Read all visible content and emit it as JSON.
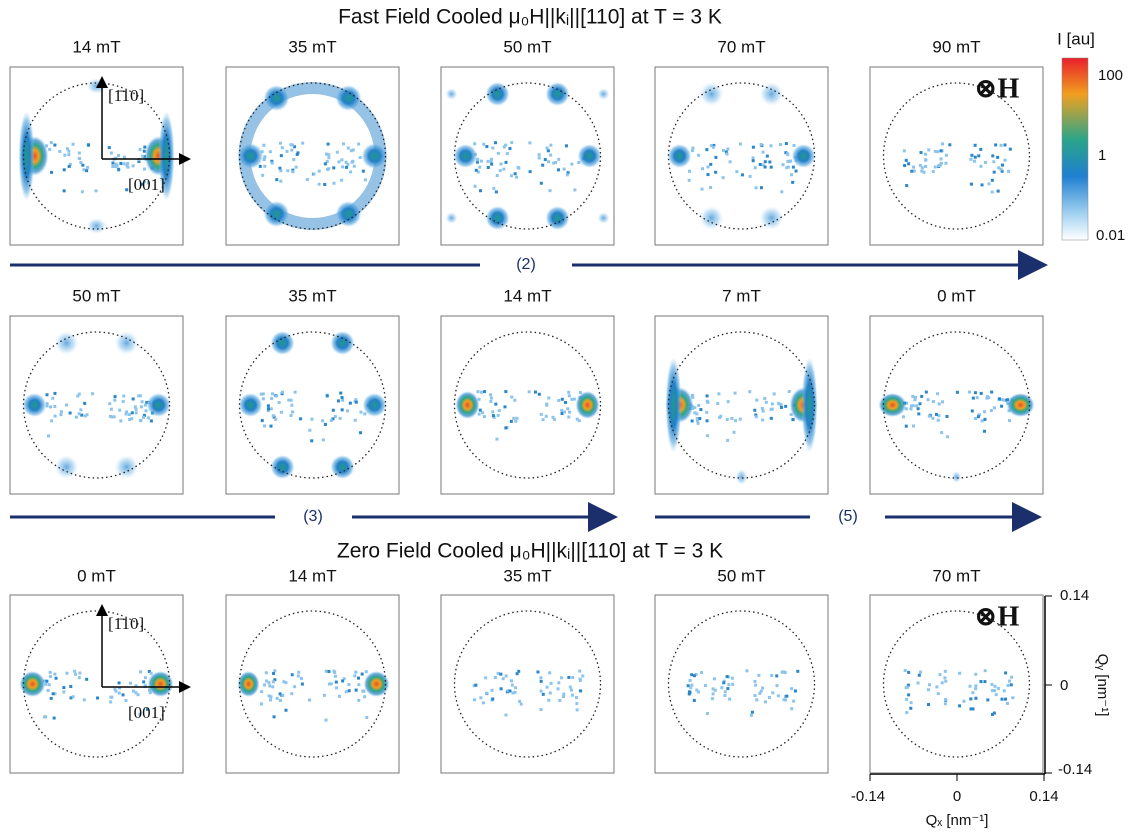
{
  "titles": [
    "Fast Field Cooled μ₀H||kᵢ||[110] at T = 3 K",
    "Zero Field Cooled μ₀H||kᵢ||[110] at T = 3 K"
  ],
  "rows": [
    [
      "14 mT",
      "35 mT",
      "50 mT",
      "70 mT",
      "90 mT"
    ],
    [
      "50 mT",
      "35 mT",
      "14 mT",
      "7 mT",
      "0 mT"
    ],
    [
      "0 mT",
      "14 mT",
      "35 mT",
      "50 mT",
      "70 mT"
    ]
  ],
  "sequence_labels": [
    "(2)",
    "(3)",
    "(5)"
  ],
  "crystal_axes": {
    "vertical": "[1̄10]",
    "horizontal": "[001]"
  },
  "field_symbol": "⊗H",
  "colorbar": {
    "label": "I [au]",
    "ticks": [
      "100",
      "1",
      "0.01"
    ]
  },
  "q_axes": {
    "x_label": "Qₓ [nm⁻¹]",
    "y_label": "Qᵧ [nm⁻¹]",
    "ticks": [
      "-0.14",
      "0",
      "0.14"
    ]
  }
}
